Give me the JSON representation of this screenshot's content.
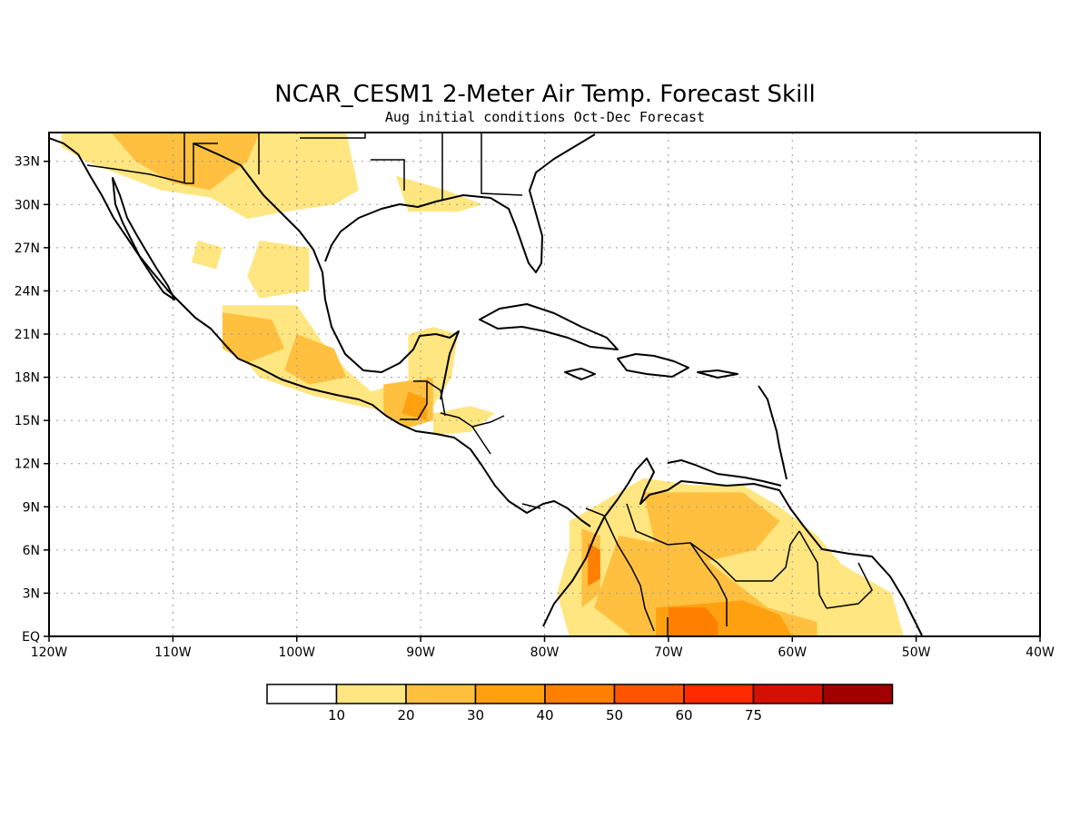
{
  "title": "NCAR_CESM1 2-Meter Air Temp. Forecast Skill",
  "subtitle": "Aug initial conditions  Oct-Dec Forecast",
  "map": {
    "lon_range": [
      -120,
      -40
    ],
    "lat_range": [
      0,
      35
    ],
    "lon_ticks": [
      {
        "value": -120,
        "label": "120W"
      },
      {
        "value": -110,
        "label": "110W"
      },
      {
        "value": -100,
        "label": "100W"
      },
      {
        "value": -90,
        "label": "90W"
      },
      {
        "value": -80,
        "label": "80W"
      },
      {
        "value": -70,
        "label": "70W"
      },
      {
        "value": -60,
        "label": "60W"
      },
      {
        "value": -50,
        "label": "50W"
      },
      {
        "value": -40,
        "label": "40W"
      }
    ],
    "lat_ticks": [
      {
        "value": 0,
        "label": "EQ"
      },
      {
        "value": 3,
        "label": "3N"
      },
      {
        "value": 6,
        "label": "6N"
      },
      {
        "value": 9,
        "label": "9N"
      },
      {
        "value": 12,
        "label": "12N"
      },
      {
        "value": 15,
        "label": "15N"
      },
      {
        "value": 18,
        "label": "18N"
      },
      {
        "value": 21,
        "label": "21N"
      },
      {
        "value": 24,
        "label": "24N"
      },
      {
        "value": 27,
        "label": "27N"
      },
      {
        "value": 30,
        "label": "30N"
      },
      {
        "value": 33,
        "label": "33N"
      }
    ],
    "gridlines": true
  },
  "colorbar": {
    "colors": [
      "#ffffff",
      "#ffe680",
      "#ffc040",
      "#ffa010",
      "#ff8000",
      "#ff5500",
      "#ff2a00",
      "#d41000",
      "#a00000"
    ],
    "labels": [
      "10",
      "20",
      "30",
      "40",
      "50",
      "60",
      "75"
    ]
  },
  "skill_regions": [
    {
      "level": 1,
      "name": "north-mexico-usa-band",
      "polygon": [
        [
          -119,
          35
        ],
        [
          -96,
          35
        ],
        [
          -95,
          31
        ],
        [
          -97,
          30
        ],
        [
          -101,
          29.5
        ],
        [
          -104,
          29
        ],
        [
          -107,
          30.5
        ],
        [
          -111,
          31
        ],
        [
          -114,
          32
        ],
        [
          -117,
          33
        ],
        [
          -119,
          34
        ]
      ]
    },
    {
      "level": 2,
      "name": "sonora-chihuahua",
      "polygon": [
        [
          -115,
          35
        ],
        [
          -103,
          35
        ],
        [
          -104,
          33
        ],
        [
          -107,
          31
        ],
        [
          -110,
          31.5
        ],
        [
          -113,
          33
        ]
      ]
    },
    {
      "level": 1,
      "name": "gulf-coast-patches",
      "polygon": [
        [
          -92,
          32
        ],
        [
          -88,
          31
        ],
        [
          -85,
          30
        ],
        [
          -87,
          29.5
        ],
        [
          -91,
          29.5
        ]
      ]
    },
    {
      "level": 1,
      "name": "baja-patch",
      "polygon": [
        [
          -108,
          27.5
        ],
        [
          -106,
          27
        ],
        [
          -106.5,
          25.5
        ],
        [
          -108.5,
          26
        ]
      ]
    },
    {
      "level": 1,
      "name": "sierra-madre-patch",
      "polygon": [
        [
          -103,
          27.5
        ],
        [
          -99,
          27
        ],
        [
          -99,
          24
        ],
        [
          -103,
          23.5
        ],
        [
          -104,
          25
        ]
      ]
    },
    {
      "level": 1,
      "name": "central-mexico-band",
      "polygon": [
        [
          -106,
          23
        ],
        [
          -100,
          23
        ],
        [
          -98,
          20.5
        ],
        [
          -96,
          18.5
        ],
        [
          -94,
          17
        ],
        [
          -92,
          17.5
        ],
        [
          -92,
          15.5
        ],
        [
          -95,
          16
        ],
        [
          -99,
          16.8
        ],
        [
          -103,
          18
        ],
        [
          -106,
          21
        ]
      ]
    },
    {
      "level": 2,
      "name": "jalisco",
      "polygon": [
        [
          -106,
          22.5
        ],
        [
          -102,
          22
        ],
        [
          -101,
          20
        ],
        [
          -104,
          19
        ],
        [
          -106,
          20
        ]
      ]
    },
    {
      "level": 2,
      "name": "central-mexico",
      "polygon": [
        [
          -100,
          21
        ],
        [
          -97,
          20
        ],
        [
          -96,
          18
        ],
        [
          -99,
          17.5
        ],
        [
          -101,
          18.5
        ]
      ]
    },
    {
      "level": 1,
      "name": "yucatan",
      "polygon": [
        [
          -91,
          21
        ],
        [
          -89,
          21.5
        ],
        [
          -87,
          21
        ],
        [
          -87.5,
          18
        ],
        [
          -89,
          16
        ],
        [
          -91,
          17.5
        ]
      ]
    },
    {
      "level": 2,
      "name": "guatemala",
      "polygon": [
        [
          -93,
          17.5
        ],
        [
          -89,
          18
        ],
        [
          -89,
          15
        ],
        [
          -91,
          14.5
        ],
        [
          -93,
          15.5
        ]
      ]
    },
    {
      "level": 3,
      "name": "guatemala-core",
      "polygon": [
        [
          -91,
          17
        ],
        [
          -89.5,
          16.5
        ],
        [
          -89.5,
          15
        ],
        [
          -91.5,
          15.5
        ]
      ]
    },
    {
      "level": 1,
      "name": "honduras",
      "polygon": [
        [
          -89,
          15.5
        ],
        [
          -86,
          16
        ],
        [
          -84,
          15.5
        ],
        [
          -86,
          14.2
        ],
        [
          -89,
          14
        ]
      ]
    },
    {
      "level": 1,
      "name": "venezuela-colombia-band",
      "polygon": [
        [
          -78,
          8
        ],
        [
          -75,
          9.5
        ],
        [
          -72,
          11
        ],
        [
          -68,
          10.5
        ],
        [
          -64,
          10.5
        ],
        [
          -61,
          9
        ],
        [
          -58,
          7
        ],
        [
          -56,
          5
        ],
        [
          -54,
          4
        ],
        [
          -52,
          3
        ],
        [
          -51,
          0
        ],
        [
          -78,
          0
        ],
        [
          -79,
          3
        ],
        [
          -78,
          6
        ]
      ]
    },
    {
      "level": 2,
      "name": "colombia-west",
      "polygon": [
        [
          -77,
          7.5
        ],
        [
          -75.5,
          7
        ],
        [
          -75.5,
          3
        ],
        [
          -77,
          2
        ]
      ]
    },
    {
      "level": 2,
      "name": "orinoco",
      "polygon": [
        [
          -72,
          10
        ],
        [
          -64,
          10
        ],
        [
          -61,
          8
        ],
        [
          -63,
          6
        ],
        [
          -68,
          5
        ],
        [
          -71,
          6
        ]
      ]
    },
    {
      "level": 2,
      "name": "amazon-north",
      "polygon": [
        [
          -74,
          7
        ],
        [
          -68,
          6
        ],
        [
          -65,
          4
        ],
        [
          -62,
          2
        ],
        [
          -58,
          1
        ],
        [
          -58,
          0
        ],
        [
          -73,
          0
        ],
        [
          -76,
          2
        ]
      ]
    },
    {
      "level": 3,
      "name": "amazon-core",
      "polygon": [
        [
          -71,
          2
        ],
        [
          -64,
          2.5
        ],
        [
          -61,
          1.5
        ],
        [
          -60,
          0
        ],
        [
          -71,
          0
        ]
      ]
    },
    {
      "level": 4,
      "name": "colombia-peak",
      "polygon": [
        [
          -76.5,
          6.5
        ],
        [
          -75.5,
          6
        ],
        [
          -75.5,
          4
        ],
        [
          -76.5,
          3.5
        ]
      ]
    },
    {
      "level": 4,
      "name": "amazon-peak",
      "polygon": [
        [
          -70,
          2
        ],
        [
          -67,
          2
        ],
        [
          -66,
          1
        ],
        [
          -66,
          0
        ],
        [
          -70,
          0
        ]
      ]
    }
  ]
}
